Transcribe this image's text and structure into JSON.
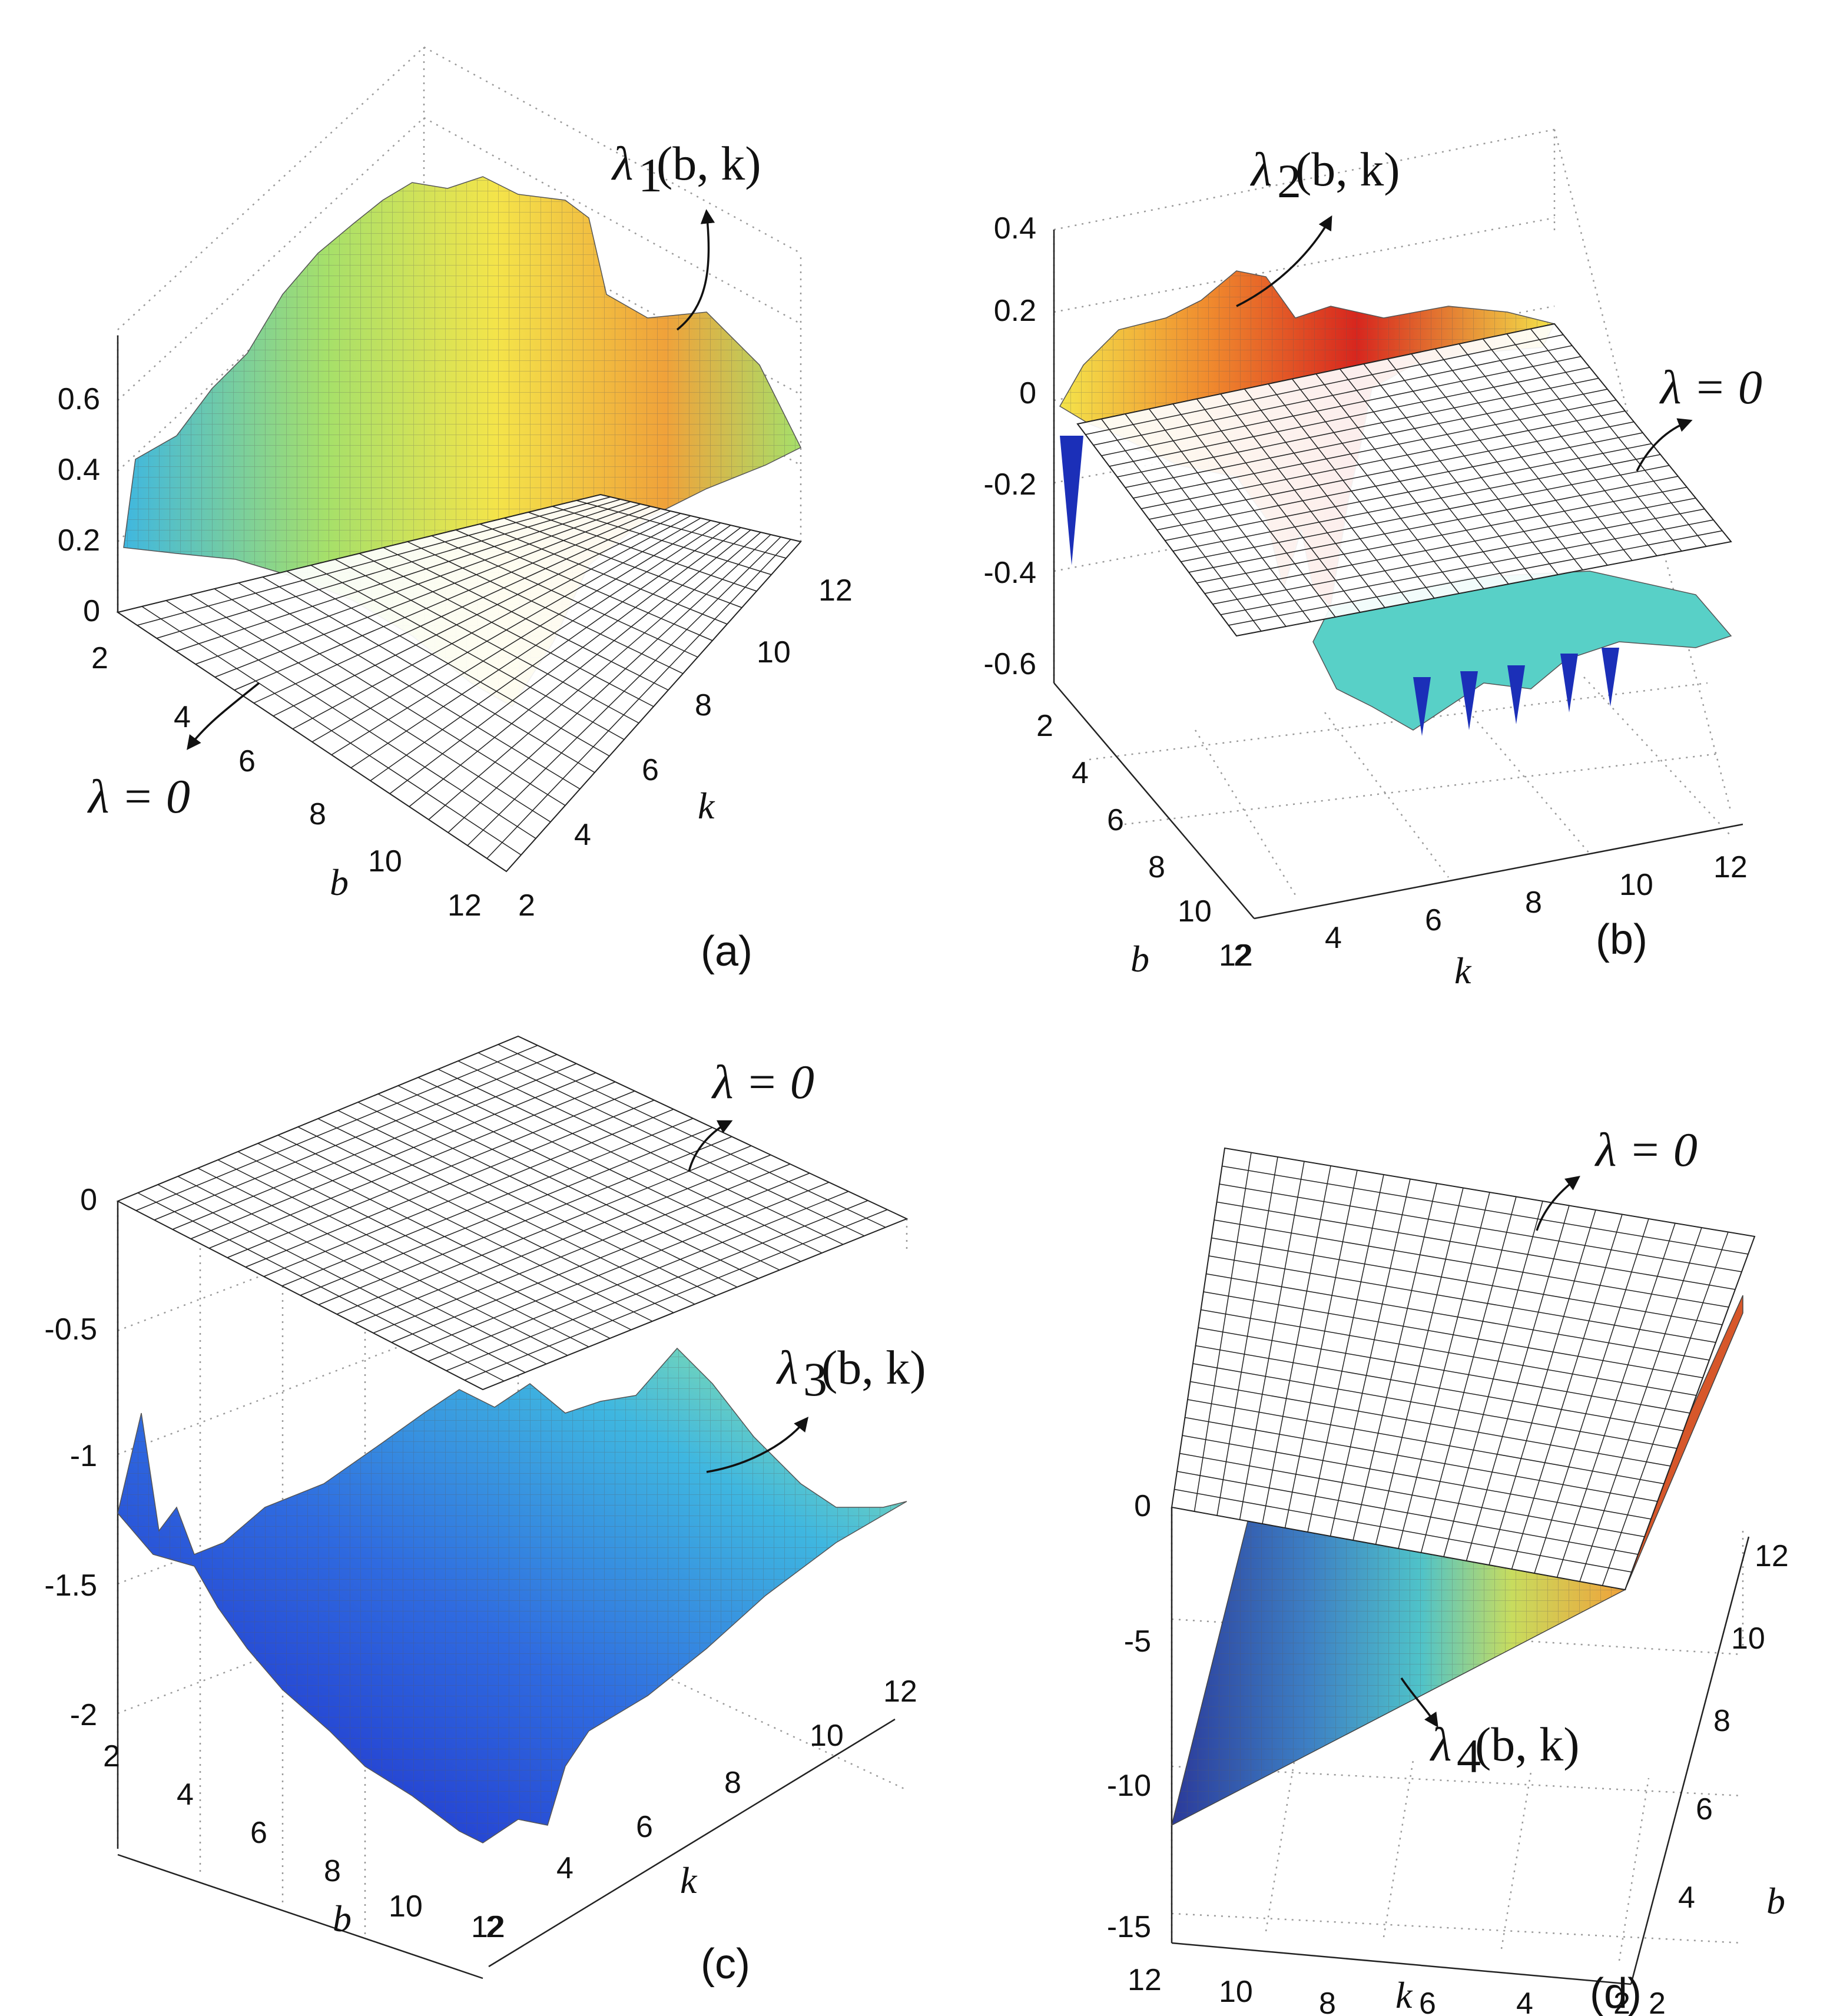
{
  "chart_data": [
    {
      "panel": "(a)",
      "type": "surface3d",
      "zticks": [
        "0",
        "0.2",
        "0.4",
        "0.6"
      ],
      "zlim": [
        0,
        0.75
      ],
      "bticks": [
        "2",
        "4",
        "6",
        "8",
        "10",
        "12"
      ],
      "kticks": [
        "2",
        "4",
        "6",
        "8",
        "10",
        "12"
      ],
      "xlabel": "b",
      "ylabel": "k",
      "surface_label": {
        "main": "λ",
        "sub": "1",
        "args": "(b, k)"
      },
      "plane_label": "λ = 0",
      "colors": [
        "#3fb7e0",
        "#a6e06a",
        "#f4e44a",
        "#f0a23a",
        "#d7572a"
      ]
    },
    {
      "panel": "(b)",
      "type": "surface3d",
      "zticks": [
        "0.4",
        "0.2",
        "0",
        "-0.2",
        "-0.4",
        "-0.6"
      ],
      "zlim": [
        -0.6,
        0.4
      ],
      "bticks": [
        "2",
        "4",
        "6",
        "8",
        "10",
        "12"
      ],
      "kticks": [
        "2",
        "4",
        "6",
        "8",
        "10",
        "12"
      ],
      "xlabel": "b",
      "ylabel": "k",
      "surface_label": {
        "main": "λ",
        "sub": "2",
        "args": "(b, k)"
      },
      "plane_label": "λ = 0",
      "colors": [
        "#d7261e",
        "#f08b2e",
        "#f4e44a",
        "#58d0c7",
        "#1b2fb8"
      ]
    },
    {
      "panel": "(c)",
      "type": "surface3d",
      "zticks": [
        "0",
        "-0.5",
        "-1",
        "-1.5",
        "-2"
      ],
      "zlim": [
        -2,
        0
      ],
      "bticks": [
        "2",
        "4",
        "6",
        "8",
        "10",
        "12"
      ],
      "kticks": [
        "2",
        "4",
        "6",
        "8",
        "10",
        "12"
      ],
      "xlabel": "b",
      "ylabel": "k",
      "surface_label": {
        "main": "λ",
        "sub": "3",
        "args": "(b, k)"
      },
      "plane_label": "λ = 0",
      "colors": [
        "#1d22c7",
        "#2f6be0",
        "#3fb7e0",
        "#7fdcb2",
        "#c9ef7a"
      ]
    },
    {
      "panel": "(d)",
      "type": "surface3d",
      "zticks": [
        "0",
        "-5",
        "-10",
        "-15"
      ],
      "zlim": [
        -15,
        0
      ],
      "kticks": [
        "12",
        "10",
        "8",
        "6",
        "4",
        "2"
      ],
      "bticks": [
        "2",
        "4",
        "6",
        "8",
        "10",
        "12"
      ],
      "xlabel": "k",
      "ylabel": "b",
      "surface_label": {
        "main": "λ",
        "sub": "4",
        "args": "(b, k)"
      },
      "plane_label": "λ = 0",
      "colors": [
        "#2b3a9a",
        "#3d7fc4",
        "#4fc3c9",
        "#c8dc5e",
        "#f0a23a",
        "#e05a2b"
      ]
    }
  ]
}
